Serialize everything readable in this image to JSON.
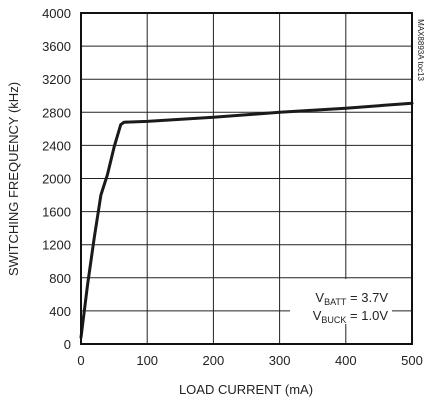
{
  "chart_data": {
    "type": "line",
    "title": "",
    "xlabel": "LOAD CURRENT (mA)",
    "ylabel": "SWITCHING FREQUENCY (kHz)",
    "xlim": [
      0,
      500
    ],
    "ylim": [
      0,
      4000
    ],
    "x_ticks": [
      0,
      100,
      200,
      300,
      400,
      500
    ],
    "y_ticks": [
      0,
      400,
      800,
      1200,
      1600,
      2000,
      2400,
      2800,
      3200,
      3600,
      4000
    ],
    "grid": true,
    "series": [
      {
        "x": [
          0,
          10,
          20,
          30,
          40,
          50,
          60,
          65,
          100,
          200,
          300,
          400,
          500
        ],
        "y": [
          80,
          720,
          1280,
          1800,
          2050,
          2380,
          2650,
          2680,
          2690,
          2740,
          2800,
          2850,
          2910
        ]
      }
    ],
    "annotations": {
      "vbatt": {
        "main": "V",
        "sub": "BATT",
        "value": " = 3.7V"
      },
      "vbuck": {
        "main": "V",
        "sub": "BUCK",
        "value": " = 1.0V"
      }
    },
    "code_label": "MAX8893A toc13",
    "colors": {
      "line": "#1a1a1a",
      "grid": "#222222",
      "frame": "#111111"
    }
  }
}
